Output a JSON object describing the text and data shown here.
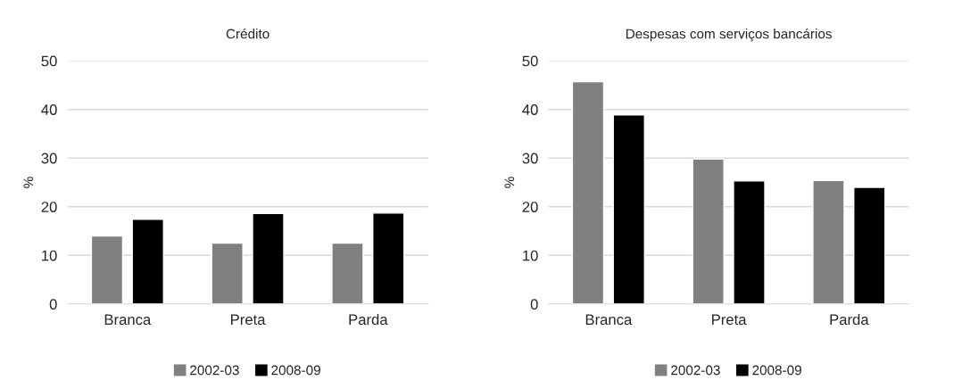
{
  "chart_data": [
    {
      "type": "bar",
      "title": "Crédito",
      "ylabel": "%",
      "categories": [
        "Branca",
        "Preta",
        "Parda"
      ],
      "series": [
        {
          "name": "2002-03",
          "color": "#808080",
          "values": [
            14.0,
            12.5,
            12.5
          ]
        },
        {
          "name": "2008-09",
          "color": "#000000",
          "values": [
            17.4,
            18.6,
            18.7
          ]
        }
      ],
      "ylim": [
        0,
        50
      ],
      "yticks": [
        0,
        10,
        20,
        30,
        40,
        50
      ],
      "grid": "y",
      "legend": "bottom"
    },
    {
      "type": "bar",
      "title": "Despesas com serviços bancários",
      "ylabel": "%",
      "categories": [
        "Branca",
        "Preta",
        "Parda"
      ],
      "series": [
        {
          "name": "2002-03",
          "color": "#808080",
          "values": [
            45.7,
            29.8,
            25.4
          ]
        },
        {
          "name": "2008-09",
          "color": "#000000",
          "values": [
            38.9,
            25.3,
            24.0
          ]
        }
      ],
      "ylim": [
        0,
        50
      ],
      "yticks": [
        0,
        10,
        20,
        30,
        40,
        50
      ],
      "grid": "y",
      "legend": "bottom"
    }
  ]
}
